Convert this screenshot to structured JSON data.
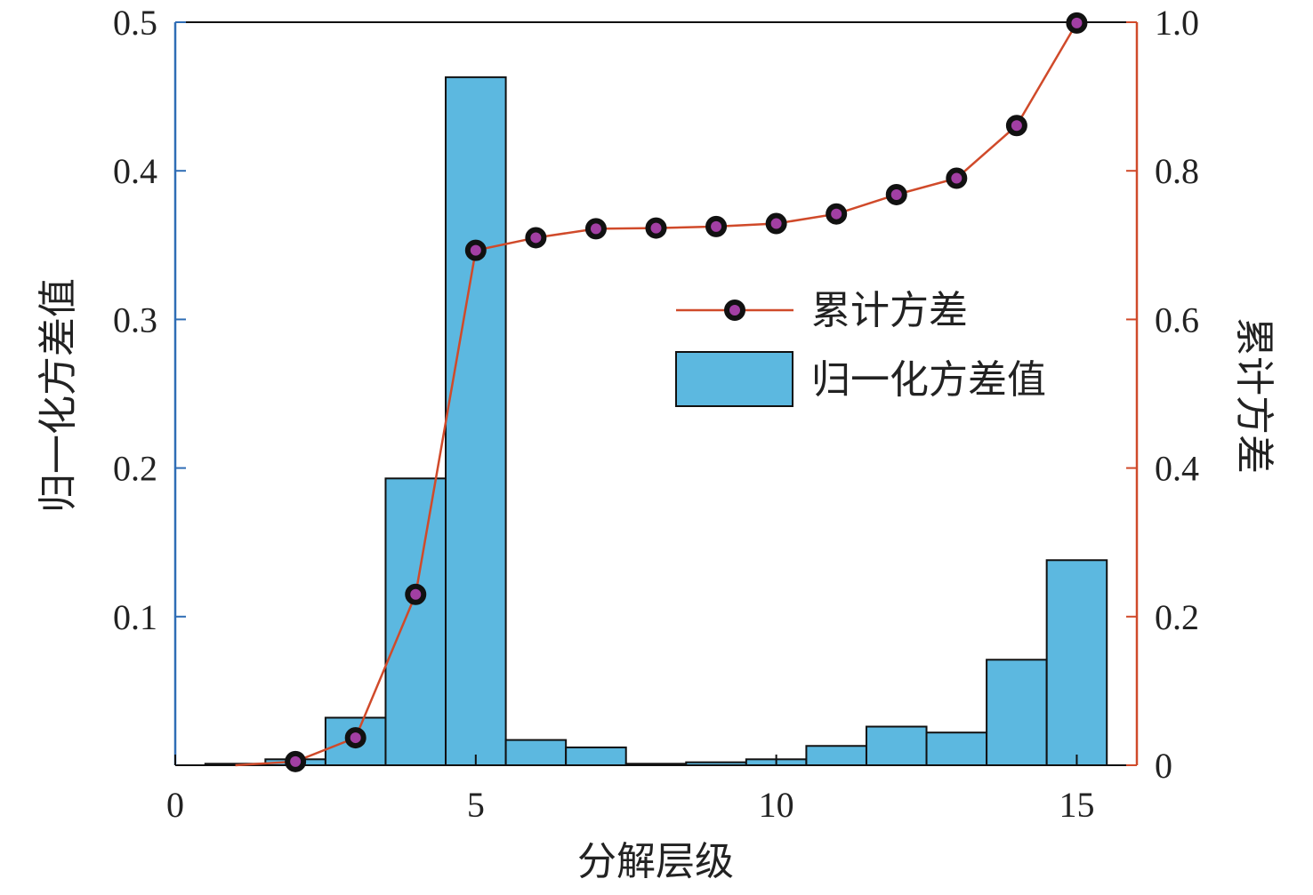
{
  "colors": {
    "bar_fill": "#5CB8E0",
    "bar_stroke": "#111111",
    "line": "#D04A2A",
    "marker_fill": "#A23FA3",
    "marker_stroke": "#111111",
    "left_axis": "#2F6DB5",
    "right_axis": "#D04A2A"
  },
  "chart_data": {
    "type": "bar",
    "xlabel": "分解层级",
    "ylabel": "归一化方差值",
    "y2label": "累计方差",
    "xlim": [
      0,
      16
    ],
    "ylim": [
      0,
      0.5
    ],
    "y2lim": [
      0,
      1.0
    ],
    "x_ticks": [
      "0",
      "5",
      "10",
      "15"
    ],
    "x_tick_values": [
      0,
      5,
      10,
      15
    ],
    "y_ticks": [
      "0.1",
      "0.2",
      "0.3",
      "0.4",
      "0.5"
    ],
    "y_tick_values": [
      0.1,
      0.2,
      0.3,
      0.4,
      0.5
    ],
    "y2_ticks": [
      "0",
      "0.2",
      "0.4",
      "0.6",
      "0.8",
      "1.0"
    ],
    "y2_tick_values": [
      0,
      0.2,
      0.4,
      0.6,
      0.8,
      1.0
    ],
    "legend_position": "center-right",
    "grid": false,
    "series": [
      {
        "name": "归一化方差值",
        "kind": "bar",
        "axis": "left",
        "x": [
          1,
          2,
          3,
          4,
          5,
          6,
          7,
          8,
          9,
          10,
          11,
          12,
          13,
          14,
          15
        ],
        "values": [
          0.001,
          0.004,
          0.032,
          0.193,
          0.463,
          0.017,
          0.012,
          0.001,
          0.002,
          0.004,
          0.013,
          0.026,
          0.022,
          0.071,
          0.138
        ]
      },
      {
        "name": "累计方差",
        "kind": "line",
        "axis": "right",
        "x": [
          1,
          2,
          3,
          4,
          5,
          6,
          7,
          8,
          9,
          10,
          11,
          12,
          13,
          14,
          15
        ],
        "values": [
          0.0,
          0.005,
          0.037,
          0.23,
          0.693,
          0.71,
          0.722,
          0.723,
          0.725,
          0.729,
          0.742,
          0.768,
          0.79,
          0.861,
          0.999
        ]
      }
    ]
  }
}
